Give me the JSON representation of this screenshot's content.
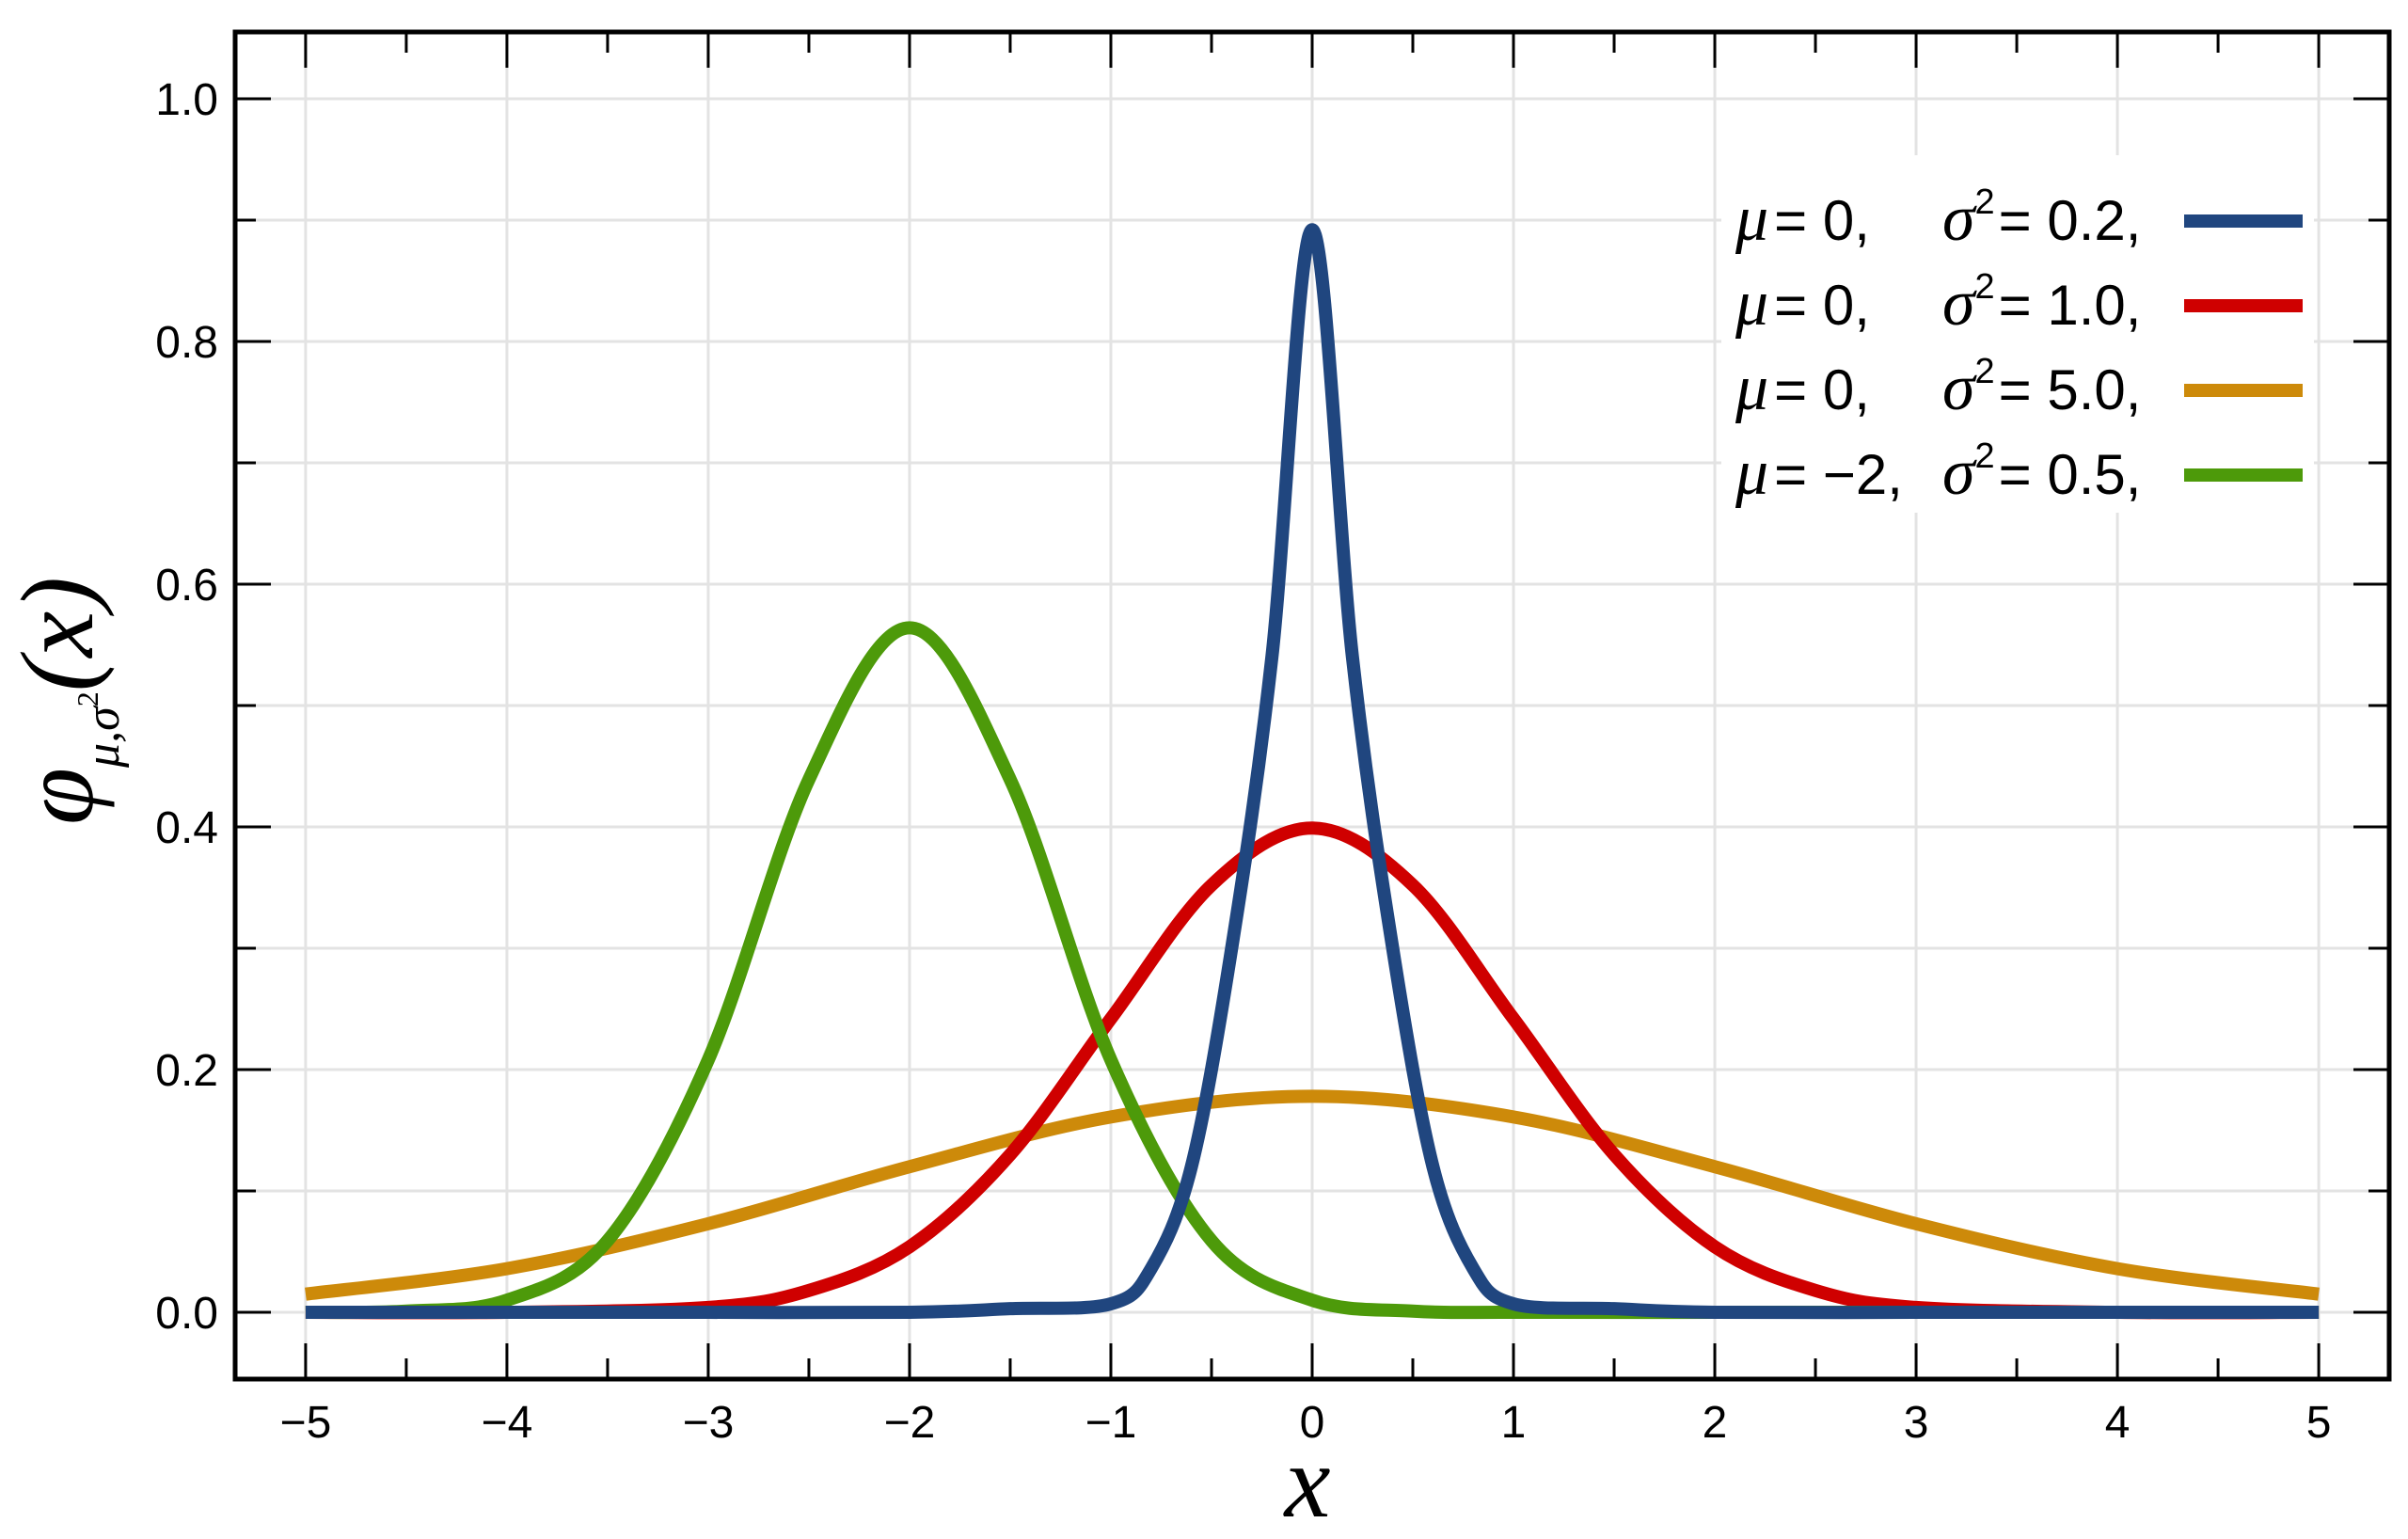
{
  "chart_data": {
    "type": "line",
    "title": "",
    "xlabel": "x",
    "ylabel": {
      "symbol": "φ",
      "subscript": "μ,σ",
      "superscript": "2",
      "argument": "(x)"
    },
    "xlim": [
      -5.35,
      5.35
    ],
    "ylim": [
      -0.055,
      1.055
    ],
    "x_ticks": [
      -5,
      -4,
      -3,
      -2,
      -1,
      0,
      1,
      2,
      3,
      4,
      5
    ],
    "x_tick_labels": [
      "−5",
      "−4",
      "−3",
      "−2",
      "−1",
      "0",
      "1",
      "2",
      "3",
      "4",
      "5"
    ],
    "y_ticks": [
      0.0,
      0.2,
      0.4,
      0.6,
      0.8,
      1.0
    ],
    "y_tick_labels": [
      "0.0",
      "0.2",
      "0.4",
      "0.6",
      "0.8",
      "1.0"
    ],
    "grid": true,
    "legend_position": "top-right",
    "series": [
      {
        "mu": 0,
        "sigma2": 0.2,
        "color": "#20467f",
        "legend": {
          "mu_label": "μ",
          "mu_text": "= 0,",
          "sigma_label": "σ",
          "sigma_sup": "2",
          "sigma_text": "= 0.2,"
        },
        "x": [
          -5,
          -4,
          -3,
          -2,
          -1.5,
          -1,
          -0.8,
          -0.6,
          -0.4,
          -0.2,
          0,
          0.2,
          0.4,
          0.6,
          0.8,
          1,
          1.5,
          2,
          3,
          4,
          5
        ],
        "y": [
          0,
          0,
          0,
          0,
          0.003,
          0.007,
          0.036,
          0.12,
          0.3,
          0.54,
          0.892,
          0.54,
          0.3,
          0.12,
          0.036,
          0.007,
          0.003,
          0,
          0,
          0,
          0
        ]
      },
      {
        "mu": 0,
        "sigma2": 1.0,
        "color": "#cf0000",
        "legend": {
          "mu_label": "μ",
          "mu_text": "= 0,",
          "sigma_label": "σ",
          "sigma_sup": "2",
          "sigma_text": "= 1.0,"
        },
        "x": [
          -5,
          -4,
          -3,
          -2.5,
          -2,
          -1.5,
          -1,
          -0.5,
          0,
          0.5,
          1,
          1.5,
          2,
          2.5,
          3,
          4,
          5
        ],
        "y": [
          0,
          0,
          0.004,
          0.018,
          0.054,
          0.13,
          0.242,
          0.352,
          0.399,
          0.352,
          0.242,
          0.13,
          0.054,
          0.018,
          0.004,
          0,
          0
        ],
        "curve": "smooth"
      },
      {
        "mu": 0,
        "sigma2": 5.0,
        "color": "#cd8a0a",
        "legend": {
          "mu_label": "μ",
          "mu_text": "= 0,",
          "sigma_label": "σ",
          "sigma_sup": "2",
          "sigma_text": "= 5.0,"
        },
        "x": [
          -5,
          -4,
          -3,
          -2,
          -1,
          0,
          1,
          2,
          3,
          4,
          5
        ],
        "y": [
          0.015,
          0.036,
          0.073,
          0.12,
          0.161,
          0.178,
          0.161,
          0.12,
          0.073,
          0.036,
          0.015
        ],
        "curve": "smooth"
      },
      {
        "mu": -2,
        "sigma2": 0.5,
        "color": "#4d9a0a",
        "legend": {
          "mu_label": "μ",
          "mu_text": "= −2,",
          "sigma_label": "σ",
          "sigma_sup": "2",
          "sigma_text": "= 0.5,"
        },
        "x": [
          -5,
          -4.5,
          -4,
          -3.5,
          -3,
          -2.5,
          -2,
          -1.5,
          -1,
          -0.5,
          0,
          0.5,
          1,
          2,
          3,
          4,
          5
        ],
        "y": [
          0,
          0.001,
          0.01,
          0.059,
          0.208,
          0.439,
          0.564,
          0.439,
          0.208,
          0.059,
          0.01,
          0.001,
          0,
          0,
          0,
          0,
          0
        ],
        "curve": "smooth"
      }
    ]
  }
}
